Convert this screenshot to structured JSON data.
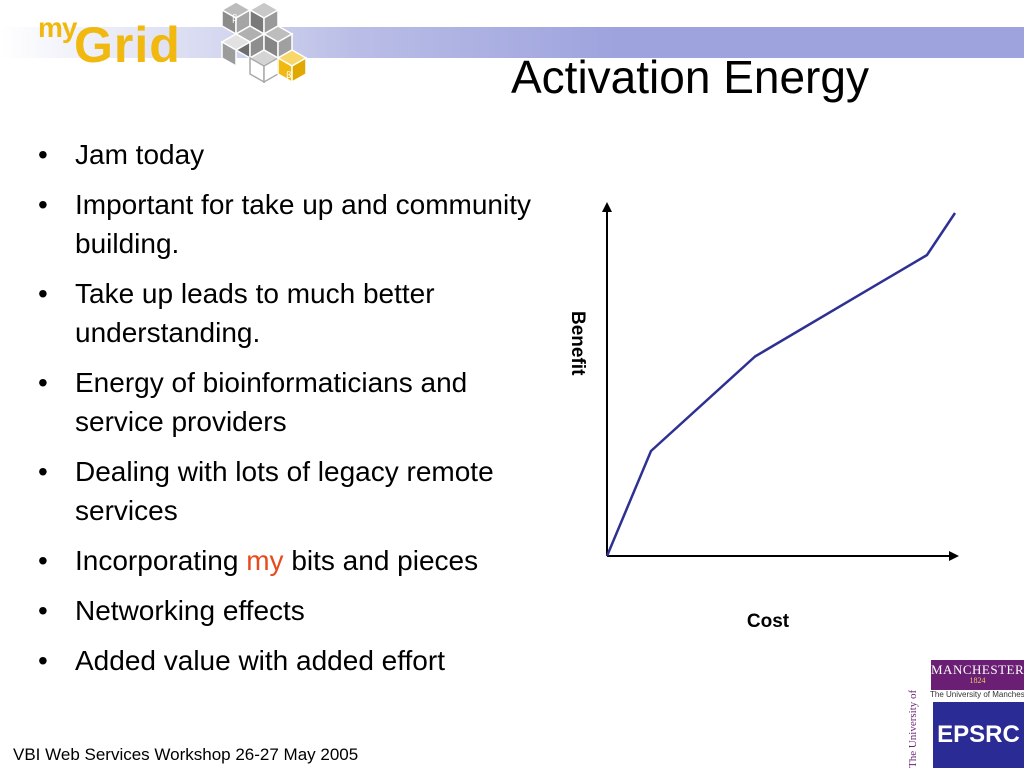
{
  "slide": {
    "title": "Activation Energy",
    "logo": {
      "my": "my",
      "grid": "Grid"
    },
    "bullets": [
      {
        "parts": [
          {
            "text": "Jam today"
          }
        ]
      },
      {
        "parts": [
          {
            "text": "Important for take up and community building."
          }
        ]
      },
      {
        "parts": [
          {
            "text": "Take up leads to much better understanding."
          }
        ]
      },
      {
        "parts": [
          {
            "text": "Energy of bioinformaticians and service providers"
          }
        ]
      },
      {
        "parts": [
          {
            "text": "Dealing with lots of legacy remote services"
          }
        ]
      },
      {
        "parts": [
          {
            "text": "Incorporating "
          },
          {
            "text": "my",
            "accent": true
          },
          {
            "text": " bits and pieces"
          }
        ]
      },
      {
        "parts": [
          {
            "text": "Networking effects"
          }
        ]
      },
      {
        "parts": [
          {
            "text": "Added value with added effort"
          }
        ]
      }
    ],
    "bullet_glyph": "•",
    "footer": "VBI Web Services Workshop 26-27 May 2005",
    "logos": {
      "manchester_name": "MANCHESTER",
      "manchester_year": "1824",
      "manchester_sub": "The University of Manchester",
      "uom_vertical": "The University of Manchester",
      "epsrc": "EPSRC"
    }
  },
  "colors": {
    "accent": "#e8491d",
    "curve": "#2e3192",
    "logo_gold": "#f1b80f",
    "band": "#9ea3de"
  },
  "chart_data": {
    "type": "line",
    "xlabel": "Cost",
    "ylabel": "Benefit",
    "series": [
      {
        "x": [
          0,
          0.11,
          0.37,
          0.8,
          0.87
        ],
        "y": [
          0,
          0.3,
          0.57,
          0.86,
          0.98
        ]
      }
    ],
    "xlim": [
      0,
      1
    ],
    "ylim": [
      0,
      1
    ],
    "ticks": false,
    "grid": false
  }
}
